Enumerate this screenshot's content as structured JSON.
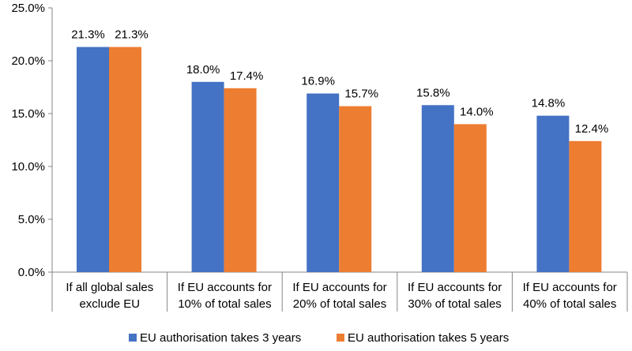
{
  "chart_data": {
    "type": "bar",
    "categories": [
      [
        "If all global sales",
        "exclude EU"
      ],
      [
        "If EU accounts for",
        "10% of total sales"
      ],
      [
        "If EU accounts for",
        "20% of total sales"
      ],
      [
        "If EU accounts for",
        "30% of total sales"
      ],
      [
        "If EU accounts for",
        "40% of total sales"
      ]
    ],
    "series": [
      {
        "name": "EU authorisation takes 3 years",
        "color": "#4472C4",
        "values": [
          21.3,
          18.0,
          16.9,
          15.8,
          14.8
        ],
        "labels": [
          "21.3%",
          "18.0%",
          "16.9%",
          "15.8%",
          "14.8%"
        ]
      },
      {
        "name": "EU authorisation takes 5 years",
        "color": "#ED7D31",
        "values": [
          21.3,
          17.4,
          15.7,
          14.0,
          12.4
        ],
        "labels": [
          "21.3%",
          "17.4%",
          "15.7%",
          "14.0%",
          "12.4%"
        ]
      }
    ],
    "ylim": [
      0,
      25
    ],
    "yticks": [
      {
        "value": 0,
        "label": "0.0%"
      },
      {
        "value": 5,
        "label": "5.0%"
      },
      {
        "value": 10,
        "label": "10.0%"
      },
      {
        "value": 15,
        "label": "15.0%"
      },
      {
        "value": 20,
        "label": "20.0%"
      },
      {
        "value": 25,
        "label": "25.0%"
      }
    ],
    "title": "",
    "xlabel": "",
    "ylabel": "",
    "grid": false,
    "legend_position": "bottom"
  }
}
